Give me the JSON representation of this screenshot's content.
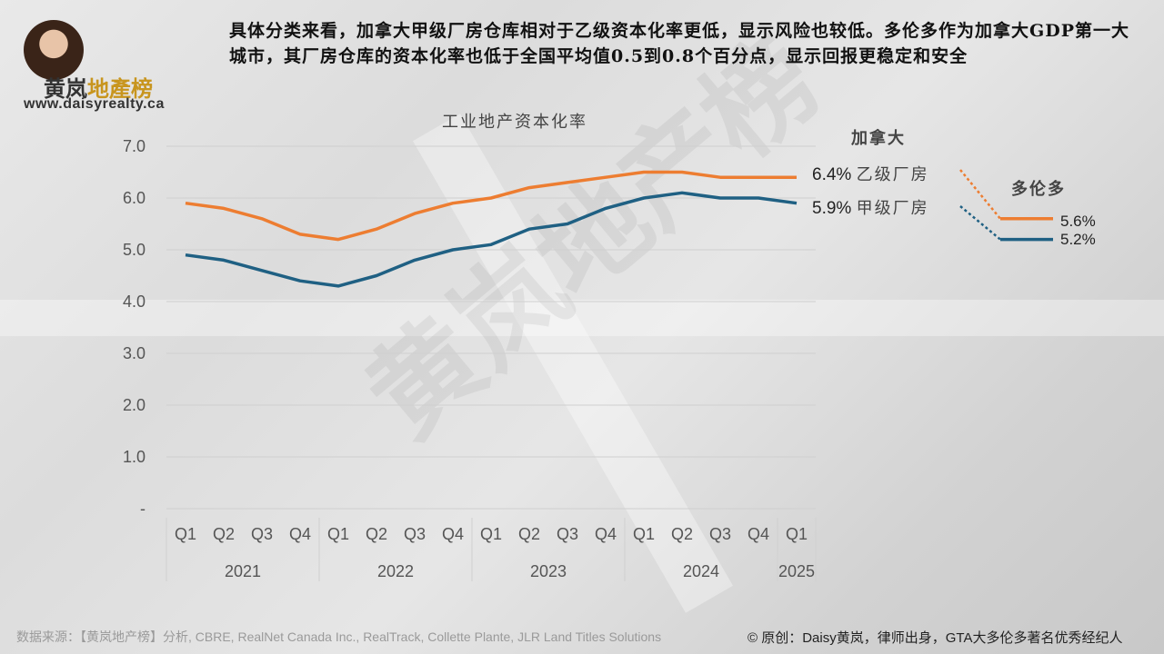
{
  "logo": {
    "name_black": "黄岚",
    "name_gold": "地產榜",
    "url": "www.daisyrealty.ca"
  },
  "headline": "具体分类来看，加拿大甲级厂房仓库相对于乙级资本化率更低，显示风险也较低。多伦多作为加拿大GDP第一大城市，其厂房仓库的资本化率也低于全国平均值0.5到0.8个百分点，显示回报更稳定和安全",
  "watermark": "黄岚地产榜",
  "chart_data": {
    "type": "line",
    "title": "工业地产资本化率",
    "categories": [
      "Q1",
      "Q2",
      "Q3",
      "Q4",
      "Q1",
      "Q2",
      "Q3",
      "Q4",
      "Q1",
      "Q2",
      "Q3",
      "Q4",
      "Q1",
      "Q2",
      "Q3",
      "Q4",
      "Q1"
    ],
    "year_groups": [
      {
        "label": "2021",
        "count": 4
      },
      {
        "label": "2022",
        "count": 4
      },
      {
        "label": "2023",
        "count": 4
      },
      {
        "label": "2024",
        "count": 4
      },
      {
        "label": "2025",
        "count": 1
      }
    ],
    "yticks": [
      "-",
      "1.0",
      "2.0",
      "3.0",
      "4.0",
      "5.0",
      "6.0",
      "7.0"
    ],
    "ylim": [
      0,
      7
    ],
    "grid": true,
    "series": [
      {
        "name": "乙级厂房",
        "color": "#ed7d31",
        "end_label": "6.4%",
        "values": [
          5.9,
          5.8,
          5.6,
          5.3,
          5.2,
          5.4,
          5.7,
          5.9,
          6.0,
          6.2,
          6.3,
          6.4,
          6.5,
          6.5,
          6.4,
          6.4,
          6.4
        ]
      },
      {
        "name": "甲级厂房",
        "color": "#1f6083",
        "end_label": "5.9%",
        "values": [
          4.9,
          4.8,
          4.6,
          4.4,
          4.3,
          4.5,
          4.8,
          5.0,
          5.1,
          5.4,
          5.5,
          5.8,
          6.0,
          6.1,
          6.0,
          6.0,
          5.9
        ]
      }
    ],
    "group_labels": {
      "canada": "加拿大",
      "toronto": "多伦多"
    },
    "toronto": [
      {
        "series": "乙级厂房",
        "value": 5.6,
        "label": "5.6%",
        "color": "#ed7d31"
      },
      {
        "series": "甲级厂房",
        "value": 5.2,
        "label": "5.2%",
        "color": "#1f6083"
      }
    ]
  },
  "footer": {
    "source": "数据来源：【黄岚地产榜】分析, CBRE, RealNet Canada Inc., RealTrack, Collette Plante, JLR Land Titles Solutions",
    "copyright": "© 原创：Daisy黄岚，律师出身，GTA大多伦多著名优秀经纪人"
  }
}
